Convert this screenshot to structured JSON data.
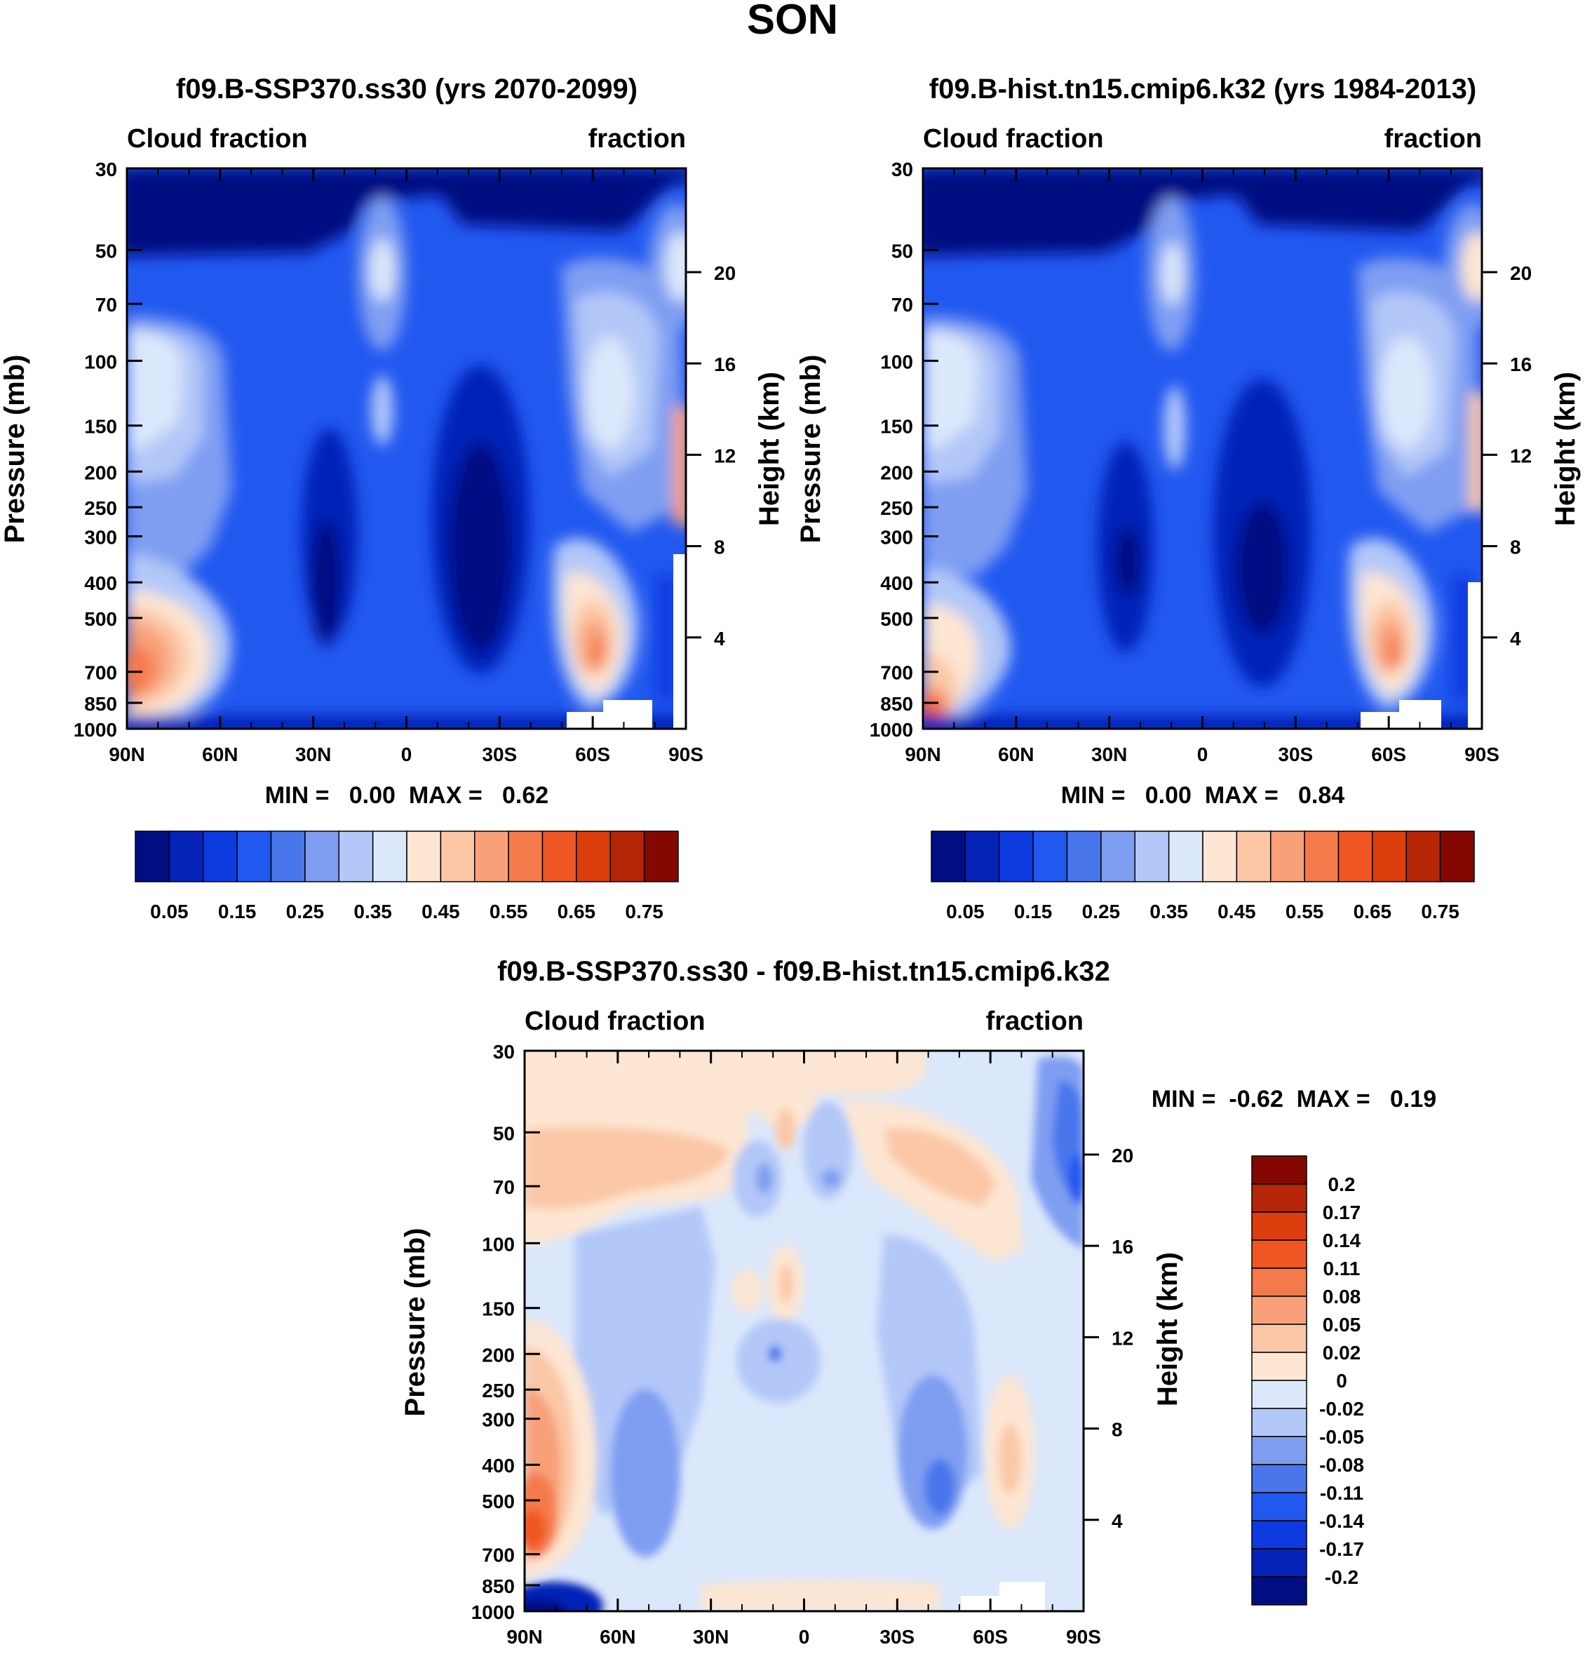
{
  "figure": {
    "title": "SON"
  },
  "chart_data": [
    {
      "type": "contour",
      "title": "f09.B-SSP370.ss30 (yrs 2070-2099)",
      "left_string": "Cloud fraction",
      "right_string": "fraction",
      "xlabel": "",
      "ylabel": "Pressure (mb)",
      "ylabel_right": "Height (km)",
      "x_ticks": [
        "90N",
        "60N",
        "30N",
        "0",
        "30S",
        "60S",
        "90S"
      ],
      "y_ticks": [
        "30",
        "50",
        "70",
        "100",
        "150",
        "200",
        "250",
        "300",
        "400",
        "500",
        "700",
        "850",
        "1000"
      ],
      "y_ticks_right": [
        "20",
        "16",
        "12",
        "8",
        "4"
      ],
      "ylim": [
        30,
        1000
      ],
      "min_max_label": "MIN =   0.00  MAX =   0.62",
      "min": 0.0,
      "max": 0.62,
      "colorbar": {
        "levels": [
          "0.05",
          "0.15",
          "0.25",
          "0.35",
          "0.45",
          "0.55",
          "0.65",
          "0.75"
        ],
        "colors": [
          "#000e82",
          "#0623b8",
          "#0d3be0",
          "#2158f0",
          "#4a76ec",
          "#7f9ef2",
          "#b3c8f8",
          "#dbe7fb",
          "#fde6d3",
          "#fbc7a6",
          "#f8a07a",
          "#f57a4b",
          "#ef5624",
          "#dc3d0d",
          "#b52606",
          "#850701"
        ]
      }
    },
    {
      "type": "contour",
      "title": "f09.B-hist.tn15.cmip6.k32 (yrs 1984-2013)",
      "left_string": "Cloud fraction",
      "right_string": "fraction",
      "xlabel": "",
      "ylabel": "Pressure (mb)",
      "ylabel_right": "Height (km)",
      "x_ticks": [
        "90N",
        "60N",
        "30N",
        "0",
        "30S",
        "60S",
        "90S"
      ],
      "y_ticks": [
        "30",
        "50",
        "70",
        "100",
        "150",
        "200",
        "250",
        "300",
        "400",
        "500",
        "700",
        "850",
        "1000"
      ],
      "y_ticks_right": [
        "20",
        "16",
        "12",
        "8",
        "4"
      ],
      "ylim": [
        30,
        1000
      ],
      "min_max_label": "MIN =   0.00  MAX =   0.84",
      "min": 0.0,
      "max": 0.84,
      "colorbar": {
        "levels": [
          "0.05",
          "0.15",
          "0.25",
          "0.35",
          "0.45",
          "0.55",
          "0.65",
          "0.75"
        ],
        "colors": [
          "#000e82",
          "#0623b8",
          "#0d3be0",
          "#2158f0",
          "#4a76ec",
          "#7f9ef2",
          "#b3c8f8",
          "#dbe7fb",
          "#fde6d3",
          "#fbc7a6",
          "#f8a07a",
          "#f57a4b",
          "#ef5624",
          "#dc3d0d",
          "#b52606",
          "#850701"
        ]
      }
    },
    {
      "type": "contour",
      "title": "f09.B-SSP370.ss30 - f09.B-hist.tn15.cmip6.k32",
      "left_string": "Cloud fraction",
      "right_string": "fraction",
      "xlabel": "",
      "ylabel": "Pressure (mb)",
      "ylabel_right": "Height (km)",
      "x_ticks": [
        "90N",
        "60N",
        "30N",
        "0",
        "30S",
        "60S",
        "90S"
      ],
      "y_ticks": [
        "30",
        "50",
        "70",
        "100",
        "150",
        "200",
        "250",
        "300",
        "400",
        "500",
        "700",
        "850",
        "1000"
      ],
      "y_ticks_right": [
        "20",
        "16",
        "12",
        "8",
        "4"
      ],
      "ylim": [
        30,
        1000
      ],
      "min_max_label": "MIN =  -0.62  MAX =   0.19",
      "min": -0.62,
      "max": 0.19,
      "colorbar": {
        "levels": [
          "0.2",
          "0.17",
          "0.14",
          "0.11",
          "0.08",
          "0.05",
          "0.02",
          "0",
          "-0.02",
          "-0.05",
          "-0.08",
          "-0.11",
          "-0.14",
          "-0.17",
          "-0.2"
        ],
        "colors": [
          "#850701",
          "#b52606",
          "#dc3d0d",
          "#ef5624",
          "#f57a4b",
          "#f8a07a",
          "#fbc7a6",
          "#fde6d3",
          "#dbe7fb",
          "#b3c8f8",
          "#7f9ef2",
          "#4a76ec",
          "#2158f0",
          "#0d3be0",
          "#0623b8",
          "#000e82"
        ]
      }
    }
  ]
}
